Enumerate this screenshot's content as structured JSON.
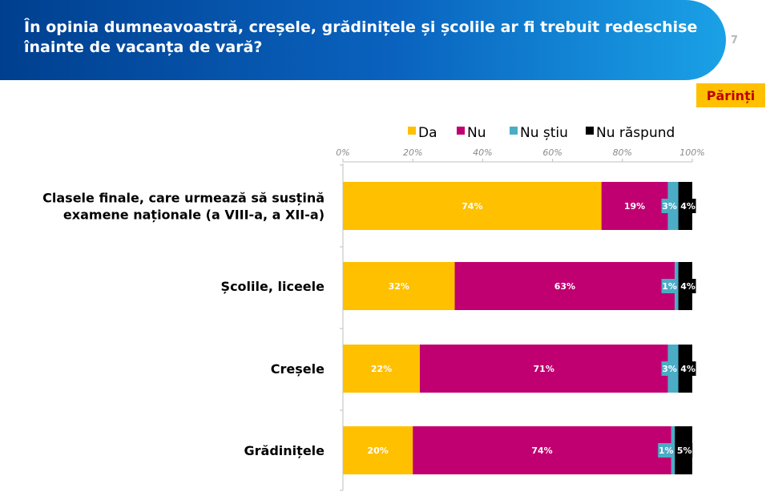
{
  "header": {
    "title_line1": "În opinia dumneavoastră, creșele, grădinițele și școlile ar fi trebuit redeschise",
    "title_line2": "înainte de vacanța de vară?",
    "page_number": "7",
    "color_left": "#003f8f",
    "color_right": "#1aa1e6"
  },
  "badge": {
    "label": "Părinți",
    "bg": "#ffc000",
    "color": "#c00000"
  },
  "chart_data": {
    "type": "bar",
    "orientation": "horizontal",
    "stacked": true,
    "categories": [
      [
        "Clasele finale, care urmează să susțină",
        "examene naționale (a VIII-a, a XII-a)"
      ],
      [
        "Școlile, liceele"
      ],
      [
        "Creșele"
      ],
      [
        "Grădinițele"
      ]
    ],
    "series": [
      {
        "name": "Da",
        "color": "#ffc000",
        "values": [
          74,
          32,
          22,
          20
        ]
      },
      {
        "name": "Nu",
        "color": "#c00070",
        "values": [
          19,
          63,
          71,
          74
        ]
      },
      {
        "name": "Nu știu",
        "color": "#4bacc6",
        "values": [
          3,
          1,
          3,
          1
        ]
      },
      {
        "name": "Nu răspund",
        "color": "#000000",
        "values": [
          4,
          4,
          4,
          5
        ]
      }
    ],
    "xlim": [
      0,
      100
    ],
    "x_ticks": [
      "0%",
      "20%",
      "40%",
      "60%",
      "80%",
      "100%"
    ],
    "value_suffix": "%",
    "legend_position": "top",
    "grid": false
  }
}
